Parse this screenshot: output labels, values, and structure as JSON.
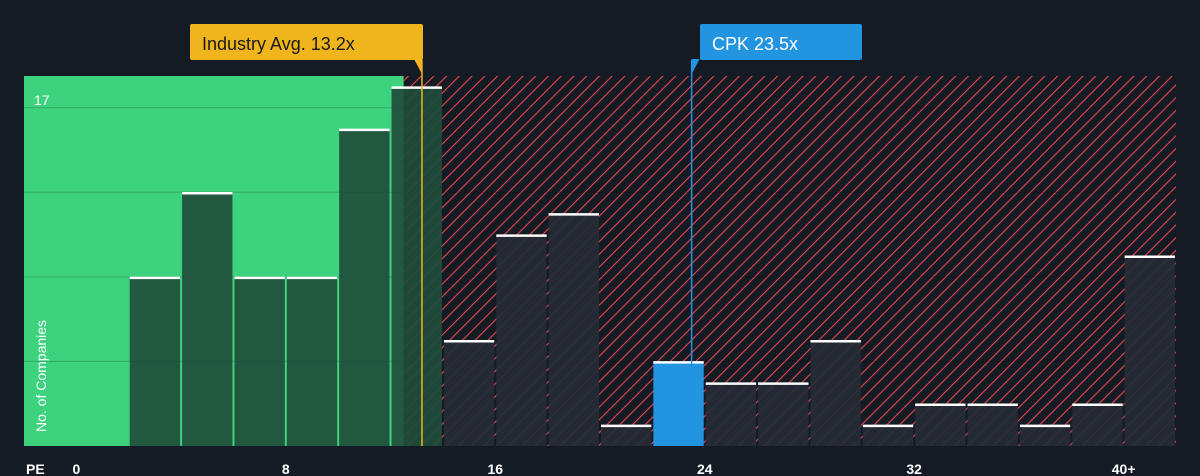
{
  "chart_data": {
    "type": "bar",
    "xlabel": "PE",
    "ylabel": "No. of Companies",
    "y_max_label": "17",
    "ylim": [
      0,
      17.5
    ],
    "xlim": [
      -2,
      42
    ],
    "x_ticks": [
      {
        "value": 0,
        "label": "0"
      },
      {
        "value": 8,
        "label": "8"
      },
      {
        "value": 16,
        "label": "16"
      },
      {
        "value": 24,
        "label": "24"
      },
      {
        "value": 32,
        "label": "32"
      },
      {
        "value": 40,
        "label": "40+"
      }
    ],
    "bin_width": 2,
    "bins": [
      {
        "start": 2,
        "value": 8
      },
      {
        "start": 4,
        "value": 12
      },
      {
        "start": 6,
        "value": 8
      },
      {
        "start": 8,
        "value": 8
      },
      {
        "start": 10,
        "value": 15
      },
      {
        "start": 12,
        "value": 17
      },
      {
        "start": 14,
        "value": 5
      },
      {
        "start": 16,
        "value": 10
      },
      {
        "start": 18,
        "value": 11
      },
      {
        "start": 20,
        "value": 1
      },
      {
        "start": 22,
        "value": 4
      },
      {
        "start": 24,
        "value": 3
      },
      {
        "start": 26,
        "value": 3
      },
      {
        "start": 28,
        "value": 5
      },
      {
        "start": 30,
        "value": 1
      },
      {
        "start": 32,
        "value": 2
      },
      {
        "start": 34,
        "value": 2
      },
      {
        "start": 36,
        "value": 1
      },
      {
        "start": 38,
        "value": 2
      },
      {
        "start": 40,
        "value": 9
      }
    ],
    "highlight_bin_start": 22,
    "industry_avg": {
      "value": 13.2,
      "label": "Industry Avg. 13.2x"
    },
    "company": {
      "value": 23.5,
      "label": "CPK 23.5x"
    },
    "grid": true
  },
  "colors": {
    "background": "#151b24",
    "undervalued_zone": "#3dd27e",
    "overvalued_hatch": "#e5474e",
    "bar_green_zone": "#1f4c3b",
    "bar_red_zone": "#262b36",
    "bar_top_line": "#ffffff",
    "highlight_bar": "#2394e0",
    "industry_badge": "#f0b51c",
    "company_badge": "#2394e0",
    "axis_text": "#ffffff"
  }
}
